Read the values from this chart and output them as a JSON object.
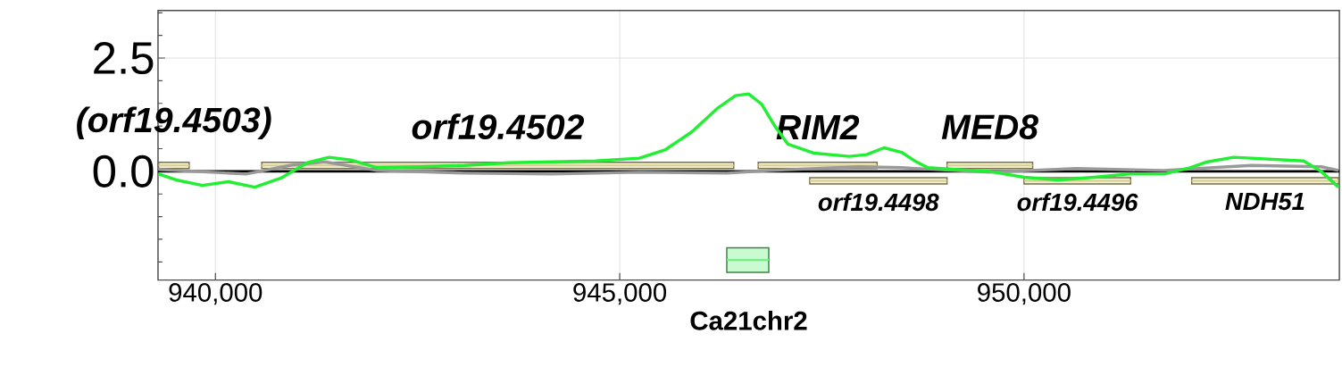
{
  "chart_data": {
    "type": "line",
    "xlabel": "Ca21chr2",
    "xlim": [
      939290,
      953900
    ],
    "ylim": [
      -2.4,
      3.55
    ],
    "xticks": [
      {
        "value": 940000,
        "label": "940,000"
      },
      {
        "value": 945000,
        "label": "945,000"
      },
      {
        "value": 950000,
        "label": "950,000"
      }
    ],
    "yticks": [
      {
        "value": -2.0,
        "label": null
      },
      {
        "value": -1.5,
        "label": null
      },
      {
        "value": -1.0,
        "label": null
      },
      {
        "value": -0.5,
        "label": null
      },
      {
        "value": 0,
        "label": "0.0"
      },
      {
        "value": 0.5,
        "label": null
      },
      {
        "value": 1.0,
        "label": null
      },
      {
        "value": 1.5,
        "label": null
      },
      {
        "value": 2.0,
        "label": null
      },
      {
        "value": 2.5,
        "label": "2.5"
      },
      {
        "value": 3.0,
        "label": null
      },
      {
        "value": 3.5,
        "label": null
      }
    ],
    "grid": true,
    "ref_lines": [
      {
        "axis": "y",
        "value": 0,
        "color": "#000000"
      }
    ],
    "series": [
      {
        "color": "#999999",
        "x": [
          939297,
          940378,
          940919,
          941351,
          942000,
          943081,
          944162,
          945243,
          946324,
          946864,
          947945,
          948486,
          949567,
          950648,
          951729,
          952810,
          953674,
          953890
        ],
        "values": [
          0.04,
          -0.06,
          0.13,
          0.21,
          0.02,
          -0.04,
          -0.06,
          -0.02,
          -0.04,
          0.02,
          0.1,
          0.08,
          -0.02,
          0.06,
          0.02,
          0.13,
          0.1,
          0.02
        ]
      },
      {
        "color": "#22ee33",
        "x": [
          939297,
          939513,
          939838,
          940162,
          940486,
          940810,
          941135,
          941405,
          941675,
          942000,
          942540,
          943081,
          943621,
          944162,
          944702,
          945243,
          945567,
          945891,
          946215,
          946431,
          946593,
          946756,
          946918,
          947080,
          947405,
          947837,
          948053,
          948269,
          948486,
          948648,
          948810,
          949134,
          949567,
          949999,
          950431,
          950864,
          951296,
          951729,
          952053,
          952269,
          952594,
          953026,
          953458,
          953674,
          953890
        ],
        "values": [
          -0.06,
          -0.19,
          -0.31,
          -0.23,
          -0.35,
          -0.15,
          0.19,
          0.31,
          0.25,
          0.08,
          0.1,
          0.13,
          0.19,
          0.21,
          0.23,
          0.29,
          0.48,
          0.87,
          1.4,
          1.67,
          1.71,
          1.48,
          1.0,
          0.6,
          0.4,
          0.33,
          0.37,
          0.52,
          0.42,
          0.23,
          0.08,
          0.04,
          0,
          -0.13,
          -0.19,
          -0.13,
          -0.06,
          -0.06,
          0.08,
          0.21,
          0.31,
          0.27,
          0.23,
          0,
          -0.35
        ]
      },
      {
        "name": "(orf19.4503)",
        "color": "#d9d08c",
        "x": [
          939297,
          939675
        ],
        "values": [
          0.13,
          0.13
        ],
        "lower": [
          0.06,
          0.06
        ],
        "upper": [
          0.2,
          0.2
        ]
      },
      {
        "name": "orf19.4502",
        "color": "#d9d08c",
        "x": [
          940573,
          946410
        ],
        "values": [
          0.13,
          0.13
        ],
        "lower": [
          0.06,
          0.06
        ],
        "upper": [
          0.2,
          0.2
        ]
      },
      {
        "name": "RIM2",
        "color": "#d9d08c",
        "x": [
          946713,
          948183
        ],
        "values": [
          0.13,
          0.13
        ],
        "lower": [
          0.06,
          0.06
        ],
        "upper": [
          0.2,
          0.2
        ]
      },
      {
        "name": "orf19.4498",
        "color": "#d9d08c",
        "x": [
          947350,
          949048
        ],
        "values": [
          -0.21,
          -0.21
        ],
        "lower": [
          -0.28,
          -0.28
        ],
        "upper": [
          -0.14,
          -0.14
        ]
      },
      {
        "name": "MED8",
        "color": "#d9d08c",
        "x": [
          949048,
          950107
        ],
        "values": [
          0.13,
          0.13
        ],
        "lower": [
          0.06,
          0.06
        ],
        "upper": [
          0.2,
          0.2
        ]
      },
      {
        "name": "orf19.4496",
        "color": "#d9d08c",
        "x": [
          950000,
          951318
        ],
        "values": [
          -0.21,
          -0.21
        ],
        "lower": [
          -0.28,
          -0.28
        ],
        "upper": [
          -0.14,
          -0.14
        ]
      },
      {
        "name": "NDH51",
        "color": "#d9d08c",
        "x": [
          952074,
          953890
        ],
        "values": [
          -0.21,
          -0.21
        ],
        "lower": [
          -0.28,
          -0.28
        ],
        "upper": [
          -0.14,
          -0.14
        ]
      },
      {
        "color": "#66f07a",
        "x": [
          946324,
          946843
        ],
        "values": [
          -1.96,
          -1.96
        ],
        "lower": [
          -2.23,
          -2.23
        ],
        "upper": [
          -1.69,
          -1.69
        ]
      }
    ]
  }
}
